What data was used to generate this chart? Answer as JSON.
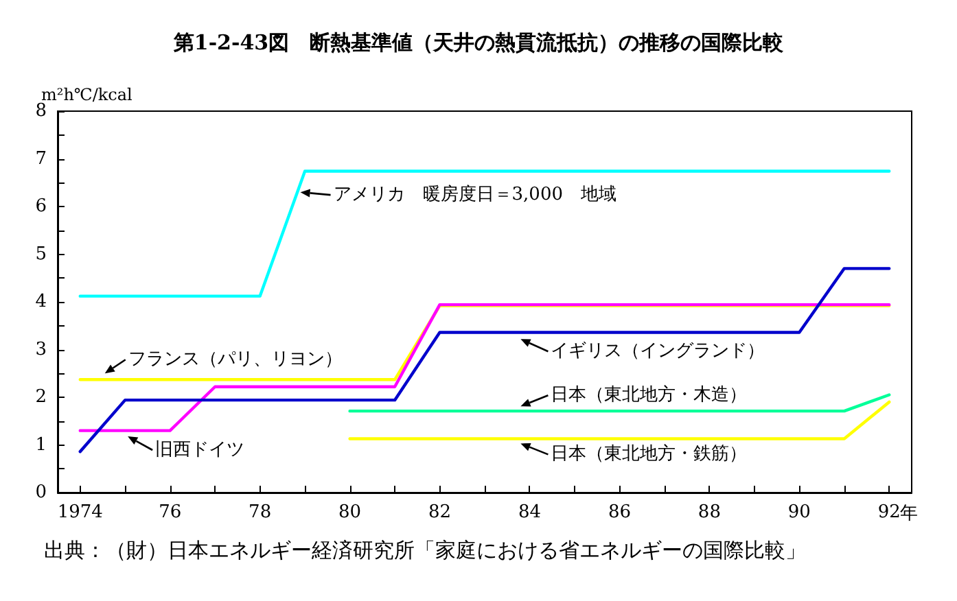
{
  "chart_data": {
    "type": "line",
    "title": "第1-2-43図　断熱基準値（天井の熱貫流抵抗）の推移の国際比較",
    "ylabel": "m²h℃/kcal",
    "annotations": [
      "出典：（財）日本エネルギー経済研究所「家庭における省エネルギーの国際比較」"
    ],
    "series": [
      {
        "name": "アメリカ　暖房度日＝3,000　地域",
        "color": "#00ffff",
        "x": [
          1974,
          1978,
          1979,
          1992
        ],
        "values": [
          4.12,
          4.12,
          6.74,
          6.74
        ]
      },
      {
        "name": "フランス（パリ、リヨン）",
        "color": "#ffff00",
        "x": [
          1974,
          1981,
          1982,
          1992
        ],
        "values": [
          2.37,
          2.37,
          3.92,
          3.92
        ]
      },
      {
        "name": "旧西ドイツ",
        "color": "#ff00ff",
        "x": [
          1974,
          1976,
          1977,
          1981,
          1982,
          1992
        ],
        "values": [
          1.3,
          1.3,
          2.22,
          2.22,
          3.94,
          3.94
        ]
      },
      {
        "name": "イギリス（イングランド）",
        "color": "#0000cc",
        "x": [
          1974,
          1975,
          1981,
          1982,
          1990,
          1991,
          1992
        ],
        "values": [
          0.86,
          1.94,
          1.94,
          3.36,
          3.36,
          4.7,
          4.7
        ]
      },
      {
        "name": "日本（東北地方・木造）",
        "color": "#00ff99",
        "x": [
          1980,
          1991,
          1992
        ],
        "values": [
          1.71,
          1.71,
          2.05
        ]
      },
      {
        "name": "日本（東北地方・鉄筋）",
        "color": "#ffff00",
        "x": [
          1980,
          1991,
          1992
        ],
        "values": [
          1.13,
          1.13,
          1.9
        ]
      }
    ],
    "xlim": [
      1973.5,
      1992.5
    ],
    "xticks": [
      1974,
      {
        "value": 1975,
        "label": null
      },
      {
        "value": 1976,
        "label": "76"
      },
      {
        "value": 1977,
        "label": null
      },
      {
        "value": 1978,
        "label": "78"
      },
      {
        "value": 1979,
        "label": null
      },
      {
        "value": 1980,
        "label": "80"
      },
      {
        "value": 1981,
        "label": null
      },
      {
        "value": 1982,
        "label": "82"
      },
      {
        "value": 1983,
        "label": null
      },
      {
        "value": 1984,
        "label": "84"
      },
      {
        "value": 1985,
        "label": null
      },
      {
        "value": 1986,
        "label": "86"
      },
      {
        "value": 1987,
        "label": null
      },
      {
        "value": 1988,
        "label": "88"
      },
      {
        "value": 1989,
        "label": null
      },
      {
        "value": 1990,
        "label": "90"
      },
      {
        "value": 1991,
        "label": null
      },
      {
        "value": 1992,
        "label": "92"
      }
    ],
    "xlabel": "年",
    "ylim": [
      0,
      8
    ],
    "yticks": [
      0,
      {
        "value": 0.5,
        "label": null
      },
      1,
      {
        "value": 1.5,
        "label": null
      },
      2,
      {
        "value": 2.5,
        "label": null
      },
      3,
      {
        "value": 3.5,
        "label": null
      },
      4,
      {
        "value": 4.5,
        "label": null
      },
      5,
      {
        "value": 5.5,
        "label": null
      },
      6,
      {
        "value": 6.5,
        "label": null
      },
      7,
      {
        "value": 7.5,
        "label": null
      },
      8
    ],
    "grid": false,
    "legend": false,
    "marker": "none",
    "line_style": "solid"
  }
}
